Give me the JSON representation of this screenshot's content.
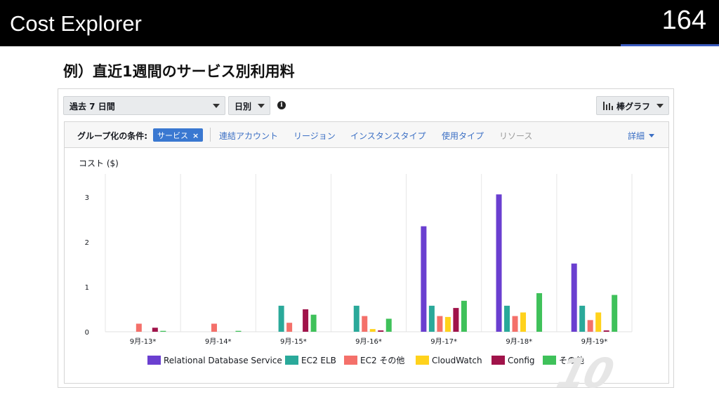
{
  "slide": {
    "title": "Cost Explorer",
    "page_number": "164",
    "subtitle": "例）直近1週間のサービス別利用料"
  },
  "toolbar": {
    "range_select": "過去 7 日間",
    "granularity_select": "日別",
    "chart_type_select": "棒グラフ"
  },
  "grouping": {
    "label": "グループ化の条件:",
    "active_tag": "サービス",
    "tag_remove": "×",
    "links": [
      "連結アカウント",
      "リージョン",
      "インスタンスタイプ",
      "使用タイプ",
      "リソース"
    ],
    "detail_link": "詳細"
  },
  "colors": {
    "rds": "#6a3fd0",
    "elb": "#2aa99a",
    "ec2_other": "#f4706a",
    "cloudwatch": "#ffd21c",
    "config": "#a0134a",
    "other": "#3fc15a",
    "accent_link": "#3b6fc4"
  },
  "chart_data": {
    "type": "bar",
    "ylabel": "コスト ($)",
    "ylim": [
      0,
      3.3
    ],
    "yticks": [
      "0",
      "1",
      "2",
      "3"
    ],
    "grid": "vertical",
    "legend_position": "bottom",
    "categories": [
      "9月-13*",
      "9月-14*",
      "9月-15*",
      "9月-16*",
      "9月-17*",
      "9月-18*",
      "9月-19*"
    ],
    "series": [
      {
        "name": "Relational Database Service",
        "color": "#6a3fd0",
        "values": [
          0,
          0,
          0,
          0,
          2.35,
          3.06,
          1.52
        ]
      },
      {
        "name": "EC2 ELB",
        "color": "#2aa99a",
        "values": [
          0,
          0,
          0.58,
          0.58,
          0.58,
          0.58,
          0.58
        ]
      },
      {
        "name": "EC2 その他",
        "color": "#f4706a",
        "values": [
          0.18,
          0.18,
          0.2,
          0.35,
          0.35,
          0.35,
          0.26
        ]
      },
      {
        "name": "CloudWatch",
        "color": "#ffd21c",
        "values": [
          0,
          0,
          0,
          0.06,
          0.33,
          0.43,
          0.43
        ]
      },
      {
        "name": "Config",
        "color": "#a0134a",
        "values": [
          0.09,
          0,
          0.5,
          0.03,
          0.53,
          0,
          0.03
        ]
      },
      {
        "name": "その他",
        "color": "#3fc15a",
        "values": [
          0.02,
          0.02,
          0.38,
          0.29,
          0.69,
          0.86,
          0.82
        ]
      }
    ]
  },
  "watermark": "10"
}
